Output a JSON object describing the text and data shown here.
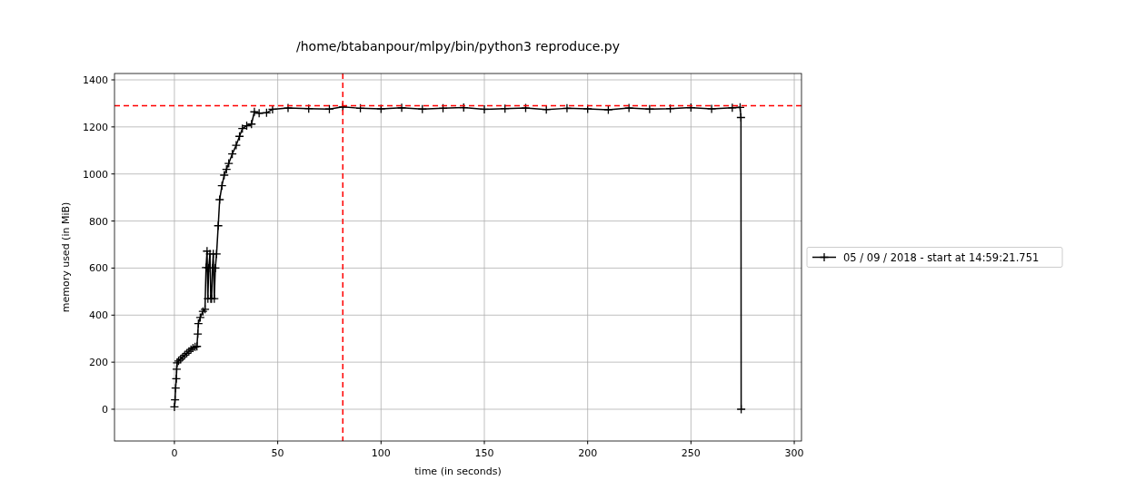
{
  "chart_data": {
    "type": "line",
    "title": "/home/btabanpour/mlpy/bin/python3 reproduce.py",
    "xlabel": "time (in seconds)",
    "ylabel": "memory used (in MiB)",
    "xlim": [
      -29,
      303.5
    ],
    "ylim": [
      -135,
      1427
    ],
    "xticks": [
      0,
      50,
      100,
      150,
      200,
      250,
      300
    ],
    "yticks": [
      0,
      200,
      400,
      600,
      800,
      1000,
      1200,
      1400
    ],
    "grid": true,
    "legend": "right",
    "marker": "cross",
    "line_style": "solid",
    "series": [
      {
        "name": "05 / 09 / 2018 - start at 14:59:21.751",
        "color": "#000000",
        "x": [
          0,
          0.3,
          0.6,
          0.9,
          1.1,
          1.3,
          2,
          3,
          4,
          5,
          6,
          7,
          8,
          9,
          10,
          10.9,
          11.3,
          11.6,
          12.5,
          13.8,
          14.8,
          15.3,
          15.8,
          16.2,
          16.6,
          17.2,
          17.6,
          18,
          18.4,
          18.8,
          19.3,
          19.8,
          20.4,
          21.2,
          21.9,
          23,
          24.1,
          25.2,
          26.3,
          28,
          29.9,
          31.5,
          32.9,
          35,
          37.3,
          38.7,
          41,
          44.6,
          47.5,
          55,
          65,
          75,
          81.5,
          90,
          100,
          110,
          120,
          130,
          140,
          150,
          160,
          170,
          180,
          190,
          200,
          210,
          220,
          230,
          240,
          250,
          260,
          270,
          273.8,
          274.2,
          274.3
        ],
        "values": [
          10,
          40,
          90,
          130,
          170,
          197,
          205,
          213,
          222,
          230,
          238,
          246,
          254,
          260,
          265,
          267,
          320,
          364,
          390,
          416,
          425,
          602,
          672,
          470,
          600,
          660,
          470,
          470,
          600,
          660,
          470,
          600,
          660,
          780,
          891,
          950,
          995,
          1020,
          1045,
          1085,
          1122,
          1160,
          1193,
          1205,
          1212,
          1264,
          1258,
          1260,
          1275,
          1280,
          1278,
          1276,
          1285,
          1279,
          1277,
          1281,
          1276,
          1279,
          1282,
          1275,
          1278,
          1280,
          1274,
          1279,
          1277,
          1273,
          1280,
          1276,
          1278,
          1282,
          1277,
          1281,
          1283,
          1240,
          0
        ]
      }
    ],
    "ref_lines": [
      {
        "axis": "y",
        "value": 1290,
        "color": "#ff0000",
        "line_style": "dashed"
      },
      {
        "axis": "x",
        "value": 81.5,
        "color": "#ff0000",
        "line_style": "dashed"
      }
    ]
  }
}
